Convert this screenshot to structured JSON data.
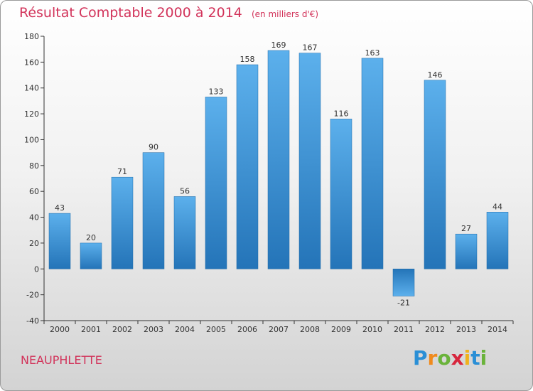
{
  "header": {
    "title": "Résultat Comptable 2000 à 2014",
    "subtitle": "(en milliers d'€)"
  },
  "footer": {
    "commune": "NEAUPHLETTE",
    "logo_letters": [
      "P",
      "r",
      "o",
      "x",
      "i",
      "t",
      "i"
    ],
    "logo_colors": [
      "#2a8fd6",
      "#f08a1c",
      "#6ab33a",
      "#d7263d",
      "#f0b21c",
      "#2a8fd6",
      "#6ab33a"
    ]
  },
  "colors": {
    "title": "#d2335a",
    "bar_light": "#5cb0ec",
    "bar_dark": "#2474b8",
    "axis": "#333333"
  },
  "chart_data": {
    "type": "bar",
    "title": "Résultat Comptable 2000 à 2014",
    "subtitle": "(en milliers d'€)",
    "xlabel": "",
    "ylabel": "",
    "categories": [
      "2000",
      "2001",
      "2002",
      "2003",
      "2004",
      "2005",
      "2006",
      "2007",
      "2008",
      "2009",
      "2010",
      "2011",
      "2012",
      "2013",
      "2014"
    ],
    "values": [
      43,
      20,
      71,
      90,
      56,
      133,
      158,
      169,
      167,
      116,
      163,
      -21,
      146,
      27,
      44
    ],
    "ylim": [
      -40,
      180
    ],
    "yticks": [
      -40,
      -20,
      0,
      20,
      40,
      60,
      80,
      100,
      120,
      140,
      160,
      180
    ],
    "grid": false
  }
}
